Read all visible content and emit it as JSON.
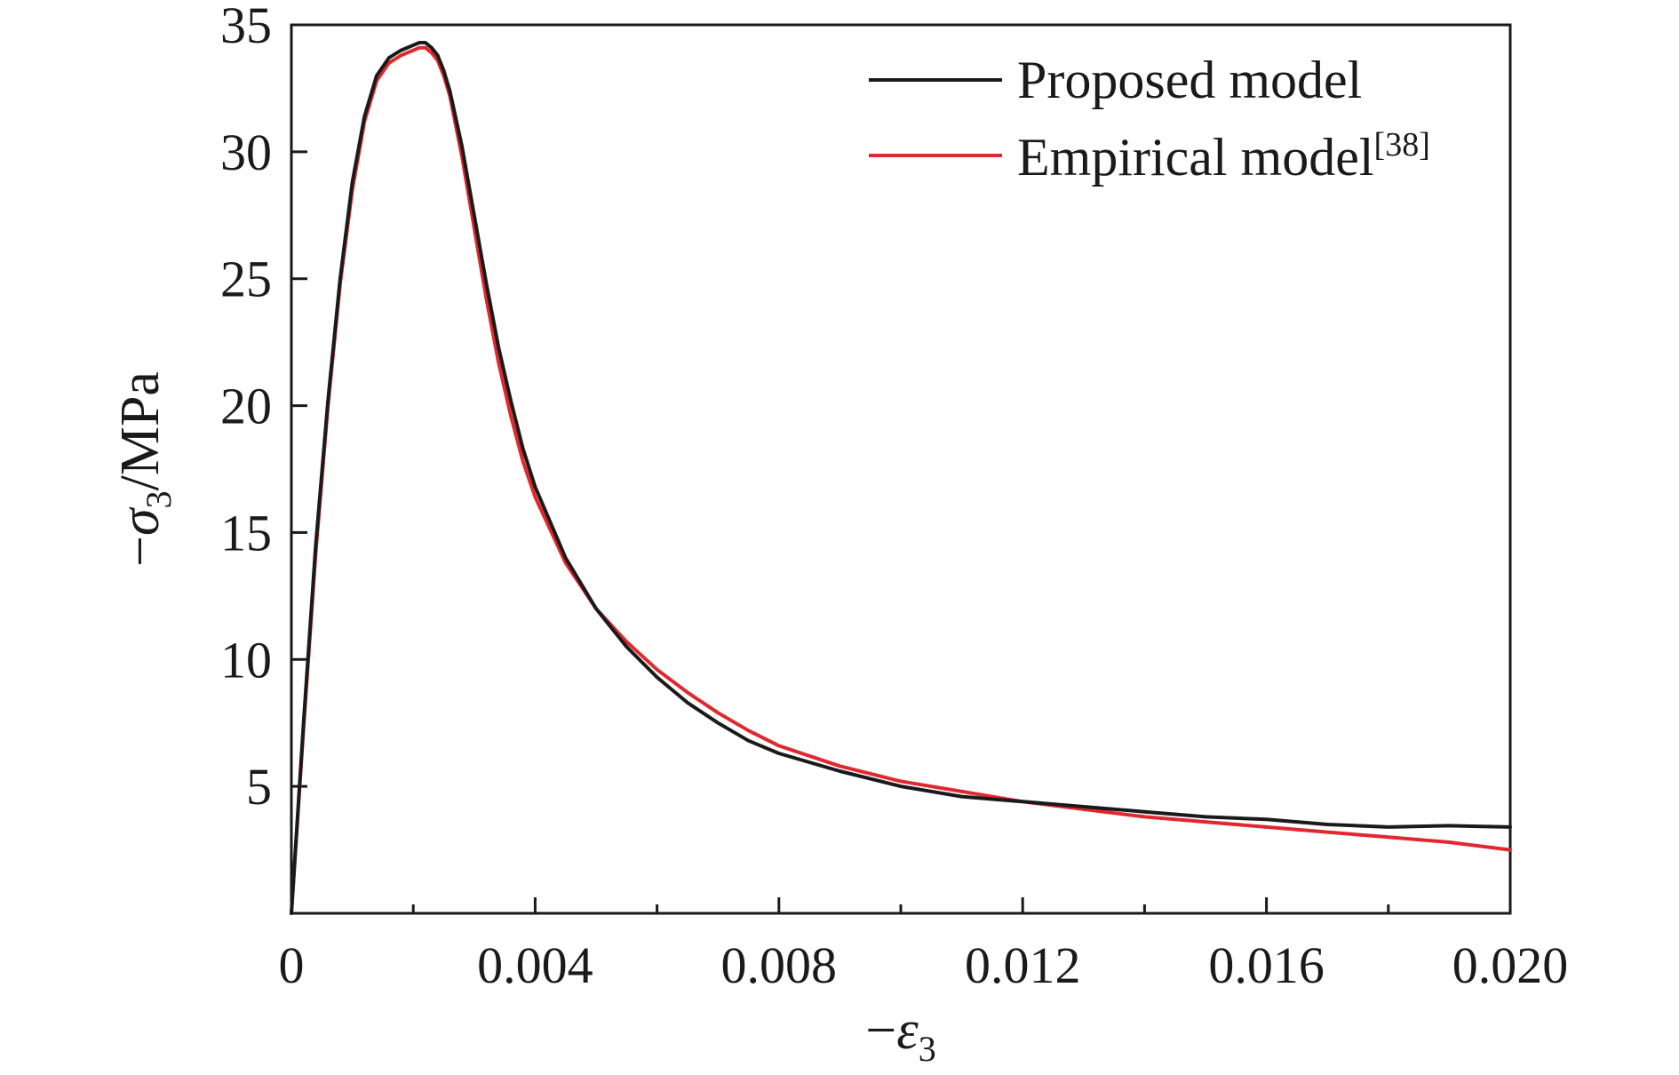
{
  "chart_data": {
    "type": "line",
    "title": "",
    "xlabel": {
      "prefix": "−",
      "symbol": "ε",
      "subscript": "3"
    },
    "ylabel": {
      "prefix": "−",
      "symbol": "σ",
      "subscript": "3",
      "unit": "/MPa"
    },
    "xlim": [
      0,
      0.02
    ],
    "ylim": [
      0,
      35
    ],
    "x_ticks": [
      0,
      0.004,
      0.008,
      0.012,
      0.016,
      0.02
    ],
    "x_tick_labels": [
      "0",
      "0.004",
      "0.008",
      "0.012",
      "0.016",
      "0.020"
    ],
    "x_minor_ticks": [
      0.002,
      0.006,
      0.01,
      0.014,
      0.018
    ],
    "y_ticks": [
      5,
      10,
      15,
      20,
      25,
      30,
      35
    ],
    "y_tick_labels": [
      "5",
      "10",
      "15",
      "20",
      "25",
      "30",
      "35"
    ],
    "grid": false,
    "legend_position": "top-right",
    "series": [
      {
        "name": "Proposed model",
        "color": "#1a1a1a",
        "x": [
          0,
          0.0002,
          0.0004,
          0.0006,
          0.0008,
          0.001,
          0.0012,
          0.0014,
          0.0016,
          0.0018,
          0.002,
          0.0021,
          0.0022,
          0.00225,
          0.0023,
          0.0024,
          0.0025,
          0.0026,
          0.0028,
          0.003,
          0.0032,
          0.0034,
          0.0036,
          0.0038,
          0.004,
          0.0045,
          0.005,
          0.0055,
          0.006,
          0.0065,
          0.007,
          0.0075,
          0.008,
          0.009,
          0.01,
          0.011,
          0.012,
          0.013,
          0.014,
          0.015,
          0.016,
          0.017,
          0.018,
          0.019,
          0.02
        ],
        "y": [
          0,
          7.5,
          14.5,
          20.2,
          25,
          28.8,
          31.4,
          33,
          33.7,
          34,
          34.2,
          34.3,
          34.3,
          34.2,
          34.1,
          33.8,
          33.2,
          32.4,
          30.2,
          27.5,
          24.8,
          22.3,
          20.2,
          18.3,
          16.8,
          14,
          12,
          10.5,
          9.3,
          8.3,
          7.5,
          6.8,
          6.3,
          5.6,
          5,
          4.6,
          4.4,
          4.2,
          4,
          3.8,
          3.7,
          3.5,
          3.4,
          3.45,
          3.4
        ]
      },
      {
        "name": "Empirical model",
        "name_superscript": "[38]",
        "color": "#e0282e",
        "x": [
          0,
          0.0002,
          0.0004,
          0.0006,
          0.0008,
          0.001,
          0.0012,
          0.0014,
          0.0016,
          0.0018,
          0.002,
          0.0021,
          0.0022,
          0.00225,
          0.0023,
          0.0024,
          0.0025,
          0.0026,
          0.0028,
          0.003,
          0.0032,
          0.0034,
          0.0036,
          0.0038,
          0.004,
          0.0045,
          0.005,
          0.0055,
          0.006,
          0.0065,
          0.007,
          0.0075,
          0.008,
          0.009,
          0.01,
          0.011,
          0.012,
          0.013,
          0.014,
          0.015,
          0.016,
          0.017,
          0.018,
          0.019,
          0.02
        ],
        "y": [
          0,
          7.3,
          14.2,
          20,
          24.8,
          28.5,
          31.2,
          32.8,
          33.5,
          33.8,
          34,
          34.1,
          34.1,
          34.0,
          33.9,
          33.6,
          33,
          32.2,
          29.8,
          27,
          24.2,
          21.7,
          19.6,
          17.8,
          16.4,
          13.8,
          12,
          10.7,
          9.6,
          8.7,
          7.9,
          7.2,
          6.6,
          5.8,
          5.2,
          4.8,
          4.4,
          4.1,
          3.8,
          3.6,
          3.4,
          3.2,
          3,
          2.8,
          2.5
        ]
      }
    ]
  }
}
